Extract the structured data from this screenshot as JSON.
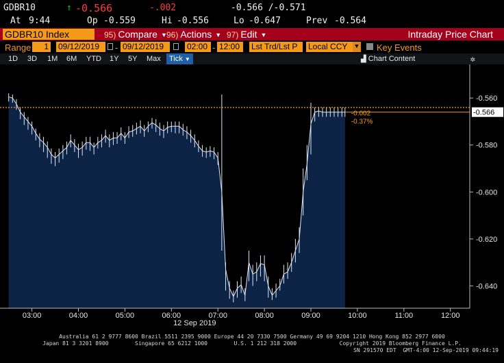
{
  "quote": {
    "ticker": "GDBR10",
    "arrow": "↑",
    "last": "-0.566",
    "change": "-.002",
    "bid_ask": "-0.566 /-0.571",
    "time_label": "At",
    "time": "9:44",
    "open_label": "Op",
    "open": "-0.559",
    "high_label": "Hi",
    "high": "-0.556",
    "low_label": "Lo",
    "low": "-0.647",
    "prev_label": "Prev",
    "prev": "-0.564"
  },
  "toolbar": {
    "security": "GDBR10 Index",
    "compare_num": "95)",
    "compare": "Compare",
    "actions_num": "96)",
    "actions": "Actions",
    "edit_num": "97)",
    "edit": "Edit",
    "title": "Intraday Price Chart"
  },
  "range": {
    "label": "Range",
    "count": "1",
    "start_date": "09/12/2019",
    "end_date": "09/12/2019",
    "start_time": "02:00",
    "end_time": "12:00",
    "mode": "Lst Trd/Lst P",
    "currency": "Local CCY",
    "key_events": "Key Events",
    "colors": {
      "field": "#f59a18",
      "bar": "#a5001c"
    }
  },
  "periods": {
    "items": [
      "1D",
      "3D",
      "1M",
      "6M",
      "YTD",
      "1Y",
      "5Y",
      "Max"
    ],
    "selected": "Tick",
    "chart_content": "Chart Content",
    "chart_icon": "chart-icon",
    "settings_icon": "gear-icon"
  },
  "chart_data": {
    "type": "area",
    "date_label": "12 Sep 2019",
    "x_ticks": [
      "03:00",
      "04:00",
      "05:00",
      "06:00",
      "07:00",
      "08:00",
      "09:00",
      "10:00",
      "11:00",
      "12:00"
    ],
    "y_ticks": [
      "-0.560",
      "-0.580",
      "-0.600",
      "-0.620",
      "-0.640"
    ],
    "ylim": [
      -0.6495,
      -0.5515
    ],
    "xlim": [
      "02:25",
      "12:25"
    ],
    "last_value_label": "-0.566",
    "change_label": "-0.002",
    "change_pct_label": "-0.37%",
    "reference_line_value": -0.564,
    "series": [
      {
        "color": "#dfe7f5",
        "fill": "#0c2346",
        "x": [
          "02:30",
          "02:35",
          "02:40",
          "02:45",
          "02:50",
          "02:55",
          "03:00",
          "03:05",
          "03:10",
          "03:15",
          "03:20",
          "03:25",
          "03:30",
          "03:35",
          "03:40",
          "03:45",
          "03:50",
          "03:55",
          "04:00",
          "04:05",
          "04:10",
          "04:15",
          "04:20",
          "04:25",
          "04:30",
          "04:35",
          "04:40",
          "04:45",
          "04:50",
          "04:55",
          "05:00",
          "05:05",
          "05:10",
          "05:15",
          "05:20",
          "05:25",
          "05:30",
          "05:35",
          "05:40",
          "05:45",
          "05:50",
          "05:55",
          "06:00",
          "06:05",
          "06:10",
          "06:15",
          "06:20",
          "06:25",
          "06:30",
          "06:35",
          "06:40",
          "06:45",
          "06:50",
          "06:55",
          "07:00",
          "07:05",
          "07:10",
          "07:15",
          "07:20",
          "07:25",
          "07:30",
          "07:35",
          "07:40",
          "07:45",
          "07:50",
          "07:55",
          "08:00",
          "08:05",
          "08:10",
          "08:15",
          "08:20",
          "08:25",
          "08:30",
          "08:35",
          "08:40",
          "08:45",
          "08:50",
          "08:55",
          "09:00",
          "09:05",
          "09:10",
          "09:15",
          "09:20",
          "09:25",
          "09:30",
          "09:35",
          "09:40",
          "09:44"
        ],
        "y": [
          -0.5595,
          -0.56,
          -0.5625,
          -0.566,
          -0.568,
          -0.57,
          -0.572,
          -0.575,
          -0.5775,
          -0.579,
          -0.581,
          -0.584,
          -0.5855,
          -0.584,
          -0.5825,
          -0.581,
          -0.578,
          -0.58,
          -0.582,
          -0.581,
          -0.579,
          -0.579,
          -0.581,
          -0.579,
          -0.578,
          -0.576,
          -0.578,
          -0.577,
          -0.577,
          -0.575,
          -0.577,
          -0.5745,
          -0.574,
          -0.573,
          -0.572,
          -0.574,
          -0.572,
          -0.5705,
          -0.5715,
          -0.573,
          -0.574,
          -0.5725,
          -0.572,
          -0.572,
          -0.572,
          -0.5735,
          -0.5745,
          -0.576,
          -0.578,
          -0.5805,
          -0.5825,
          -0.583,
          -0.5825,
          -0.583,
          -0.5855,
          -0.6,
          -0.633,
          -0.641,
          -0.6445,
          -0.641,
          -0.6395,
          -0.644,
          -0.63,
          -0.635,
          -0.634,
          -0.6305,
          -0.631,
          -0.64,
          -0.644,
          -0.642,
          -0.64,
          -0.635,
          -0.634,
          -0.63,
          -0.625,
          -0.62,
          -0.6,
          -0.588,
          -0.571,
          -0.566,
          -0.5655,
          -0.566,
          -0.566,
          -0.566,
          -0.566,
          -0.566,
          -0.566,
          -0.566
        ],
        "lows": [
          -0.5615,
          -0.562,
          -0.565,
          -0.569,
          -0.5715,
          -0.5735,
          -0.5755,
          -0.578,
          -0.581,
          -0.583,
          -0.5855,
          -0.588,
          -0.589,
          -0.5875,
          -0.586,
          -0.584,
          -0.581,
          -0.583,
          -0.5855,
          -0.5845,
          -0.582,
          -0.5825,
          -0.584,
          -0.5815,
          -0.581,
          -0.579,
          -0.581,
          -0.58,
          -0.5795,
          -0.578,
          -0.5795,
          -0.577,
          -0.5765,
          -0.5755,
          -0.575,
          -0.5765,
          -0.5745,
          -0.573,
          -0.5745,
          -0.576,
          -0.577,
          -0.575,
          -0.5745,
          -0.575,
          -0.575,
          -0.576,
          -0.5775,
          -0.579,
          -0.581,
          -0.583,
          -0.585,
          -0.5855,
          -0.585,
          -0.586,
          -0.5885,
          -0.625,
          -0.642,
          -0.6455,
          -0.647,
          -0.645,
          -0.643,
          -0.6465,
          -0.638,
          -0.64,
          -0.638,
          -0.636,
          -0.638,
          -0.645,
          -0.646,
          -0.645,
          -0.642,
          -0.639,
          -0.637,
          -0.634,
          -0.63,
          -0.626,
          -0.61,
          -0.595,
          -0.584,
          -0.57,
          -0.568,
          -0.568,
          -0.568,
          -0.568,
          -0.568,
          -0.568,
          -0.568,
          -0.568
        ],
        "highs": [
          -0.558,
          -0.5585,
          -0.5605,
          -0.564,
          -0.566,
          -0.568,
          -0.57,
          -0.573,
          -0.575,
          -0.5765,
          -0.5785,
          -0.5815,
          -0.583,
          -0.5815,
          -0.58,
          -0.5785,
          -0.5755,
          -0.5775,
          -0.5795,
          -0.5785,
          -0.5765,
          -0.5765,
          -0.579,
          -0.5765,
          -0.5755,
          -0.5735,
          -0.5755,
          -0.5745,
          -0.5745,
          -0.5725,
          -0.5745,
          -0.572,
          -0.5715,
          -0.5705,
          -0.5695,
          -0.5715,
          -0.57,
          -0.5685,
          -0.569,
          -0.5705,
          -0.5715,
          -0.57,
          -0.57,
          -0.57,
          -0.57,
          -0.571,
          -0.572,
          -0.5735,
          -0.5755,
          -0.578,
          -0.58,
          -0.581,
          -0.5805,
          -0.581,
          -0.583,
          -0.5585,
          -0.63,
          -0.638,
          -0.642,
          -0.638,
          -0.636,
          -0.641,
          -0.625,
          -0.631,
          -0.63,
          -0.627,
          -0.627,
          -0.636,
          -0.641,
          -0.639,
          -0.637,
          -0.631,
          -0.63,
          -0.626,
          -0.62,
          -0.615,
          -0.59,
          -0.58,
          -0.562,
          -0.564,
          -0.564,
          -0.564,
          -0.564,
          -0.564,
          -0.564,
          -0.564,
          -0.564,
          -0.564
        ]
      }
    ]
  },
  "footer": {
    "line1": "Australia 61 2 9777 8600 Brazil 5511 2395 9000 Europe 44 20 7330 7500 Germany 49 69 9204 1210 Hong Kong 852 2977 6000",
    "line2": "Japan 81 3 3201 8900        Singapore 65 6212 1000        U.S. 1 212 318 2000             Copyright 2019 Bloomberg Finance L.P.",
    "line3": "SN 291570 EDT  GMT-4:00 12-Sep-2019 09:44:19"
  }
}
